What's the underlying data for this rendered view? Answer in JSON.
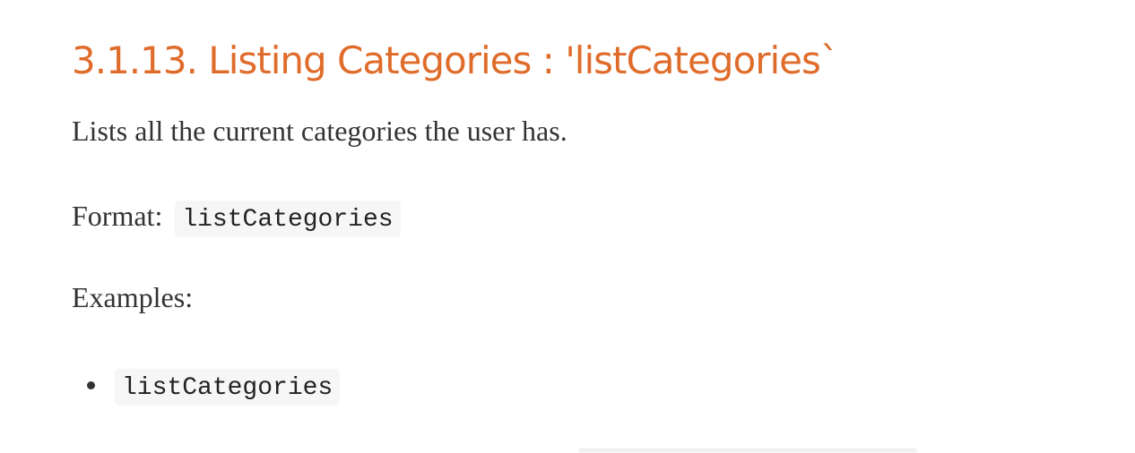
{
  "section": {
    "heading": "3.1.13. Listing Categories : 'listCategories`",
    "description": "Lists all the current categories the user has.",
    "format_label": "Format:",
    "format_code": "listCategories",
    "examples_label": "Examples:",
    "examples": [
      "listCategories"
    ]
  },
  "colors": {
    "heading": "#e06c2b",
    "body_text": "#333333",
    "code_background": "#f6f6f6"
  }
}
